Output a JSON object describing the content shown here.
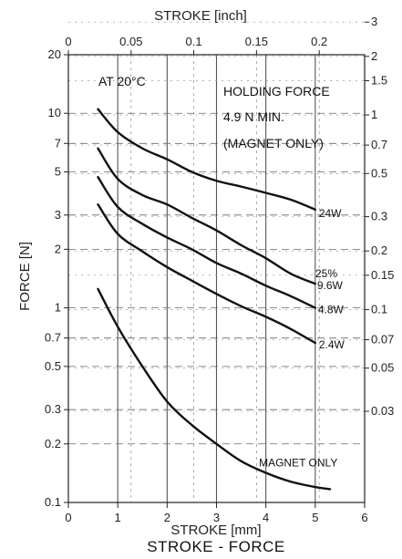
{
  "chart_data": {
    "type": "line",
    "title": "STROKE - FORCE",
    "xlabel": "STROKE [mm]",
    "ylabel": "FORCE [N]",
    "x2label": "STROKE [inch]",
    "xlim": [
      0,
      6
    ],
    "ylim": [
      0.1,
      20
    ],
    "yscale": "log",
    "grid": true,
    "x_ticks": [
      "0",
      "1",
      "2",
      "3",
      "4",
      "5",
      "6"
    ],
    "x_ticks_values": [
      0,
      1,
      2,
      3,
      4,
      5,
      6
    ],
    "y_ticks": [
      "20",
      "10",
      "7",
      "5",
      "3",
      "2",
      "1",
      "0.7",
      "0.5",
      "0.3",
      "0.2",
      "0.1"
    ],
    "y_ticks_values": [
      20,
      10,
      7,
      5,
      3,
      2,
      1,
      0.7,
      0.5,
      0.3,
      0.2,
      0.1
    ],
    "x2_ticks": [
      "0",
      "0.05",
      "0.1",
      "0.15",
      "0.2"
    ],
    "x2_ticks_values": [
      0,
      0.05,
      0.1,
      0.15,
      0.2
    ],
    "y2_ticks": [
      "3",
      "2",
      "1.5",
      "1",
      "0.7",
      "0.5",
      "0.3",
      "0.2",
      "0.15",
      "0.1",
      "0.07",
      "0.05",
      "0.03"
    ],
    "y2_ticks_values": [
      3,
      2,
      1.5,
      1,
      0.7,
      0.5,
      0.3,
      0.2,
      0.15,
      0.1,
      0.07,
      0.05,
      0.03
    ],
    "annotations": {
      "temperature": "AT 20°C",
      "holding_force_1": "HOLDING FORCE",
      "holding_force_2": "4.9 N MIN.",
      "holding_force_3": "(MAGNET ONLY)",
      "duty": "25%"
    },
    "series": [
      {
        "name": "24W",
        "x": [
          0.6,
          1.0,
          1.5,
          2.0,
          2.5,
          3.0,
          3.5,
          4.0,
          4.5,
          5.0
        ],
        "y": [
          10.5,
          8.0,
          6.6,
          5.8,
          5.0,
          4.5,
          4.2,
          3.9,
          3.6,
          3.2
        ]
      },
      {
        "name": "9.6W",
        "x": [
          0.6,
          1.0,
          1.5,
          2.0,
          2.5,
          3.0,
          3.5,
          4.0,
          4.5,
          5.0
        ],
        "y": [
          6.6,
          4.6,
          3.8,
          3.4,
          2.9,
          2.5,
          2.1,
          1.8,
          1.5,
          1.33
        ]
      },
      {
        "name": "4.8W",
        "x": [
          0.6,
          1.0,
          1.5,
          2.0,
          2.5,
          3.0,
          3.5,
          4.0,
          4.5,
          5.0
        ],
        "y": [
          4.7,
          3.3,
          2.7,
          2.3,
          2.0,
          1.7,
          1.5,
          1.3,
          1.15,
          1.0
        ]
      },
      {
        "name": "2.4W",
        "x": [
          0.6,
          1.0,
          1.5,
          2.0,
          2.5,
          3.0,
          3.5,
          4.0,
          4.5,
          5.0
        ],
        "y": [
          3.4,
          2.4,
          1.95,
          1.62,
          1.38,
          1.18,
          1.02,
          0.9,
          0.78,
          0.66
        ]
      },
      {
        "name": "MAGNET ONLY",
        "x": [
          0.6,
          1.0,
          1.5,
          2.0,
          2.5,
          3.0,
          3.5,
          4.0,
          4.5,
          5.0,
          5.3
        ],
        "y": [
          1.25,
          0.8,
          0.5,
          0.33,
          0.25,
          0.2,
          0.163,
          0.142,
          0.128,
          0.12,
          0.117
        ]
      }
    ]
  }
}
